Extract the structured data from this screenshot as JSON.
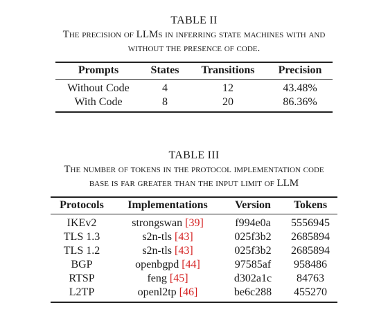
{
  "table2": {
    "label": "TABLE II",
    "caption_line1": "The precision of LLMs in inferring state machines with and",
    "caption_line2": "without the presence of code.",
    "headers": [
      "Prompts",
      "States",
      "Transitions",
      "Precision"
    ],
    "rows": [
      [
        "Without Code",
        "4",
        "12",
        "43.48%"
      ],
      [
        "With Code",
        "8",
        "20",
        "86.36%"
      ]
    ]
  },
  "table3": {
    "label": "TABLE III",
    "caption_line1": "The number of tokens in the protocol implementation code",
    "caption_line2": "base is far greater than the input limit of LLM",
    "headers": [
      "Protocols",
      "Implementations",
      "Version",
      "Tokens"
    ],
    "rows": [
      {
        "protocol": "IKEv2",
        "impl": "strongswan",
        "cite": "[39]",
        "version": "f994e0a",
        "tokens": "5556945"
      },
      {
        "protocol": "TLS 1.3",
        "impl": "s2n-tls",
        "cite": "[43]",
        "version": "025f3b2",
        "tokens": "2685894"
      },
      {
        "protocol": "TLS 1.2",
        "impl": "s2n-tls",
        "cite": "[43]",
        "version": "025f3b2",
        "tokens": "2685894"
      },
      {
        "protocol": "BGP",
        "impl": "openbgpd",
        "cite": "[44]",
        "version": "97585af",
        "tokens": "958486"
      },
      {
        "protocol": "RTSP",
        "impl": "feng",
        "cite": "[45]",
        "version": "d302a1c",
        "tokens": "84763"
      },
      {
        "protocol": "L2TP",
        "impl": "openl2tp",
        "cite": "[46]",
        "version": "be6c288",
        "tokens": "455270"
      }
    ]
  },
  "colors": {
    "text": "#1a1a1a",
    "citation": "#d42020",
    "background": "#ffffff"
  }
}
